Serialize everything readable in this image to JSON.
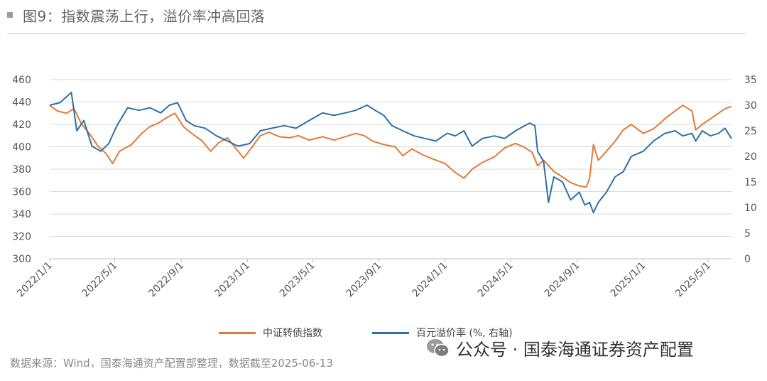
{
  "header": {
    "title": "图9：指数震荡上行，溢价率冲高回落"
  },
  "source_text": "数据来源：Wind，国泰海通资产配置部整理，数据截至2025-06-13",
  "watermark": {
    "text": "公众号 · 国泰海通证券资产配置",
    "icon": "wechat-icon"
  },
  "colors": {
    "index": "#e07b39",
    "premium": "#2e6fa8",
    "grid": "#d9d9d9",
    "axis_text": "#555555"
  },
  "chart_data": {
    "type": "line",
    "title": "",
    "x_ticks": [
      "2022/1/1",
      "2022/5/1",
      "2022/9/1",
      "2023/1/1",
      "2023/5/1",
      "2023/9/1",
      "2024/1/1",
      "2024/5/1",
      "2024/9/1",
      "2025/1/1",
      "2025/5/1"
    ],
    "x_range": [
      "2022/1/1",
      "2025/6/13"
    ],
    "y_left": {
      "ticks": [
        300,
        320,
        340,
        360,
        380,
        400,
        420,
        440,
        460
      ],
      "range": [
        300,
        460
      ]
    },
    "y_right": {
      "ticks": [
        0,
        5,
        10,
        15,
        20,
        25,
        30,
        35
      ],
      "range": [
        0,
        35
      ]
    },
    "grid": true,
    "legend_position": "bottom",
    "series": [
      {
        "name": "中证转债指数",
        "axis": "left",
        "color": "#e07b39",
        "points": [
          [
            "2022/1/1",
            437
          ],
          [
            "2022/1/15",
            432
          ],
          [
            "2022/2/1",
            430
          ],
          [
            "2022/2/15",
            434
          ],
          [
            "2022/3/1",
            420
          ],
          [
            "2022/3/15",
            412
          ],
          [
            "2022/4/1",
            400
          ],
          [
            "2022/4/15",
            394
          ],
          [
            "2022/4/27",
            385
          ],
          [
            "2022/5/10",
            396
          ],
          [
            "2022/6/1",
            402
          ],
          [
            "2022/6/20",
            412
          ],
          [
            "2022/7/5",
            418
          ],
          [
            "2022/7/20",
            421
          ],
          [
            "2022/8/5",
            426
          ],
          [
            "2022/8/20",
            430
          ],
          [
            "2022/9/5",
            418
          ],
          [
            "2022/9/20",
            412
          ],
          [
            "2022/10/10",
            405
          ],
          [
            "2022/10/25",
            396
          ],
          [
            "2022/11/10",
            404
          ],
          [
            "2022/11/25",
            408
          ],
          [
            "2022/12/10",
            399
          ],
          [
            "2022/12/25",
            390
          ],
          [
            "2023/1/10",
            400
          ],
          [
            "2023/1/25",
            410
          ],
          [
            "2023/2/10",
            413
          ],
          [
            "2023/3/1",
            409
          ],
          [
            "2023/3/20",
            408
          ],
          [
            "2023/4/5",
            410
          ],
          [
            "2023/4/25",
            406
          ],
          [
            "2023/5/20",
            409
          ],
          [
            "2023/6/10",
            406
          ],
          [
            "2023/7/1",
            409
          ],
          [
            "2023/7/20",
            412
          ],
          [
            "2023/8/5",
            410
          ],
          [
            "2023/8/20",
            405
          ],
          [
            "2023/9/10",
            402
          ],
          [
            "2023/10/1",
            400
          ],
          [
            "2023/10/15",
            392
          ],
          [
            "2023/11/1",
            398
          ],
          [
            "2023/11/20",
            393
          ],
          [
            "2023/12/10",
            389
          ],
          [
            "2024/1/1",
            385
          ],
          [
            "2024/1/20",
            377
          ],
          [
            "2024/2/5",
            372
          ],
          [
            "2024/2/20",
            380
          ],
          [
            "2024/3/10",
            386
          ],
          [
            "2024/4/1",
            391
          ],
          [
            "2024/4/20",
            399
          ],
          [
            "2024/5/10",
            403
          ],
          [
            "2024/5/25",
            400
          ],
          [
            "2024/6/10",
            395
          ],
          [
            "2024/6/20",
            383
          ],
          [
            "2024/7/1",
            388
          ],
          [
            "2024/7/20",
            378
          ],
          [
            "2024/8/5",
            373
          ],
          [
            "2024/8/20",
            368
          ],
          [
            "2024/9/5",
            365
          ],
          [
            "2024/9/18",
            364
          ],
          [
            "2024/9/24",
            372
          ],
          [
            "2024/10/1",
            402
          ],
          [
            "2024/10/10",
            388
          ],
          [
            "2024/10/25",
            396
          ],
          [
            "2024/11/10",
            405
          ],
          [
            "2024/11/25",
            415
          ],
          [
            "2024/12/10",
            420
          ],
          [
            "2025/1/1",
            412
          ],
          [
            "2025/1/20",
            416
          ],
          [
            "2025/2/10",
            425
          ],
          [
            "2025/3/1",
            432
          ],
          [
            "2025/3/15",
            437
          ],
          [
            "2025/4/1",
            432
          ],
          [
            "2025/4/8",
            415
          ],
          [
            "2025/4/20",
            420
          ],
          [
            "2025/5/5",
            425
          ],
          [
            "2025/5/20",
            430
          ],
          [
            "2025/6/1",
            434
          ],
          [
            "2025/6/13",
            436
          ]
        ]
      },
      {
        "name": "百元溢价率 (%, 右轴)",
        "axis": "right",
        "color": "#2e6fa8",
        "points": [
          [
            "2022/1/1",
            30
          ],
          [
            "2022/1/20",
            30.5
          ],
          [
            "2022/2/10",
            32.5
          ],
          [
            "2022/2/20",
            25
          ],
          [
            "2022/3/5",
            27
          ],
          [
            "2022/3/20",
            22
          ],
          [
            "2022/4/5",
            21
          ],
          [
            "2022/4/20",
            22.5
          ],
          [
            "2022/5/5",
            26
          ],
          [
            "2022/5/25",
            29.5
          ],
          [
            "2022/6/15",
            29
          ],
          [
            "2022/7/5",
            29.5
          ],
          [
            "2022/7/25",
            28.5
          ],
          [
            "2022/8/10",
            30
          ],
          [
            "2022/8/25",
            30.5
          ],
          [
            "2022/9/10",
            27
          ],
          [
            "2022/9/25",
            26
          ],
          [
            "2022/10/15",
            25.5
          ],
          [
            "2022/11/5",
            24
          ],
          [
            "2022/11/25",
            23
          ],
          [
            "2022/12/15",
            22
          ],
          [
            "2023/1/5",
            22.5
          ],
          [
            "2023/1/25",
            25
          ],
          [
            "2023/2/15",
            25.5
          ],
          [
            "2023/3/10",
            26
          ],
          [
            "2023/4/1",
            25.5
          ],
          [
            "2023/4/25",
            27
          ],
          [
            "2023/5/20",
            28.5
          ],
          [
            "2023/6/10",
            28
          ],
          [
            "2023/7/1",
            28.5
          ],
          [
            "2023/7/20",
            29
          ],
          [
            "2023/8/10",
            30
          ],
          [
            "2023/8/25",
            29
          ],
          [
            "2023/9/10",
            28
          ],
          [
            "2023/9/25",
            26
          ],
          [
            "2023/10/15",
            25
          ],
          [
            "2023/11/5",
            24
          ],
          [
            "2023/11/25",
            23.5
          ],
          [
            "2023/12/15",
            23
          ],
          [
            "2024/1/5",
            24.5
          ],
          [
            "2024/1/20",
            24
          ],
          [
            "2024/2/5",
            25
          ],
          [
            "2024/2/20",
            22
          ],
          [
            "2024/3/10",
            23.5
          ],
          [
            "2024/4/1",
            24
          ],
          [
            "2024/4/20",
            23.5
          ],
          [
            "2024/5/10",
            25
          ],
          [
            "2024/6/5",
            26.5
          ],
          [
            "2024/6/15",
            26
          ],
          [
            "2024/6/20",
            21
          ],
          [
            "2024/7/1",
            19
          ],
          [
            "2024/7/10",
            11
          ],
          [
            "2024/7/20",
            16
          ],
          [
            "2024/8/5",
            15
          ],
          [
            "2024/8/20",
            11.5
          ],
          [
            "2024/9/5",
            13
          ],
          [
            "2024/9/15",
            10.5
          ],
          [
            "2024/9/24",
            11
          ],
          [
            "2024/10/1",
            9
          ],
          [
            "2024/10/10",
            11
          ],
          [
            "2024/10/25",
            13
          ],
          [
            "2024/11/10",
            16
          ],
          [
            "2024/11/25",
            17
          ],
          [
            "2024/12/10",
            20
          ],
          [
            "2025/1/1",
            21
          ],
          [
            "2025/1/20",
            23
          ],
          [
            "2025/2/10",
            24.5
          ],
          [
            "2025/3/1",
            25
          ],
          [
            "2025/3/15",
            24
          ],
          [
            "2025/4/1",
            24.5
          ],
          [
            "2025/4/8",
            23
          ],
          [
            "2025/4/20",
            25
          ],
          [
            "2025/5/5",
            24
          ],
          [
            "2025/5/20",
            24.5
          ],
          [
            "2025/6/1",
            25.5
          ],
          [
            "2025/6/13",
            23.5
          ]
        ]
      }
    ]
  }
}
